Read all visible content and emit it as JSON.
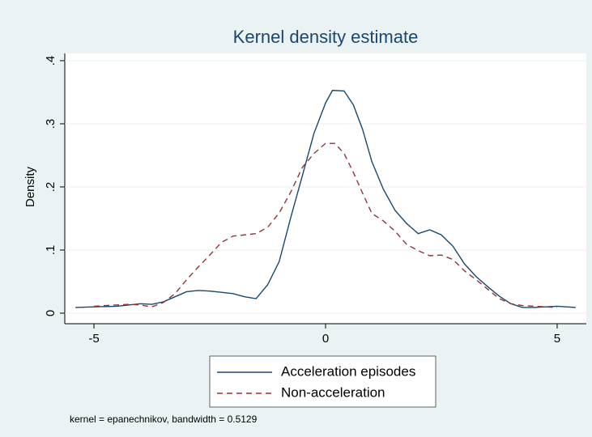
{
  "chart_data": {
    "type": "line",
    "title": "Kernel density estimate",
    "y_label": "Density",
    "note": "kernel = epanechnikov, bandwidth = 0.5129",
    "xlim": [
      -5.63,
      5.63
    ],
    "xticks": [
      -5,
      0,
      5
    ],
    "ylim": [
      -0.0167,
      0.4115
    ],
    "yticks": [
      0,
      {
        "value": 0.1,
        "label": ".1"
      },
      {
        "value": 0.2,
        "label": ".2"
      },
      {
        "value": 0.3,
        "label": ".3"
      },
      {
        "value": 0.4,
        "label": ".4"
      }
    ],
    "grid": true,
    "legend": "bottom",
    "series": [
      {
        "name": "Acceleration episodes",
        "color": "#1a476f",
        "dash": "solid",
        "x": [
          -5.4,
          -5.0,
          -4.5,
          -4.0,
          -3.75,
          -3.5,
          -3.25,
          -3.0,
          -2.75,
          -2.5,
          -2.25,
          -2.0,
          -1.75,
          -1.5,
          -1.25,
          -1.0,
          -0.75,
          -0.5,
          -0.25,
          0,
          0.15,
          0.4,
          0.6,
          0.8,
          1.0,
          1.25,
          1.5,
          1.75,
          2.0,
          2.25,
          2.5,
          2.75,
          3.0,
          3.25,
          3.5,
          3.75,
          4.0,
          4.25,
          4.5,
          5.0,
          5.4
        ],
        "values": [
          0.009,
          0.01,
          0.011,
          0.015,
          0.014,
          0.018,
          0.026,
          0.034,
          0.036,
          0.035,
          0.033,
          0.031,
          0.026,
          0.023,
          0.045,
          0.082,
          0.152,
          0.218,
          0.285,
          0.333,
          0.353,
          0.352,
          0.33,
          0.291,
          0.24,
          0.196,
          0.163,
          0.142,
          0.126,
          0.132,
          0.124,
          0.106,
          0.078,
          0.058,
          0.042,
          0.027,
          0.015,
          0.009,
          0.009,
          0.011,
          0.009
        ]
      },
      {
        "name": "Non-acceleration",
        "color": "#90353b",
        "dash": "dashed",
        "x": [
          -5.0,
          -4.5,
          -4.25,
          -4.0,
          -3.75,
          -3.5,
          -3.25,
          -3.0,
          -2.75,
          -2.5,
          -2.25,
          -2.0,
          -1.75,
          -1.5,
          -1.25,
          -1.0,
          -0.75,
          -0.5,
          -0.25,
          0,
          0.2,
          0.4,
          0.6,
          0.8,
          1.0,
          1.25,
          1.5,
          1.75,
          2.0,
          2.25,
          2.5,
          2.75,
          3.0,
          3.25,
          3.5,
          3.75,
          4.0,
          4.25,
          4.5,
          5.0
        ],
        "values": [
          0.011,
          0.013,
          0.014,
          0.013,
          0.01,
          0.017,
          0.031,
          0.053,
          0.073,
          0.092,
          0.112,
          0.122,
          0.124,
          0.126,
          0.136,
          0.159,
          0.192,
          0.231,
          0.253,
          0.269,
          0.269,
          0.253,
          0.223,
          0.19,
          0.158,
          0.146,
          0.13,
          0.109,
          0.099,
          0.091,
          0.092,
          0.085,
          0.067,
          0.053,
          0.038,
          0.023,
          0.015,
          0.012,
          0.011,
          0.009
        ]
      }
    ]
  }
}
